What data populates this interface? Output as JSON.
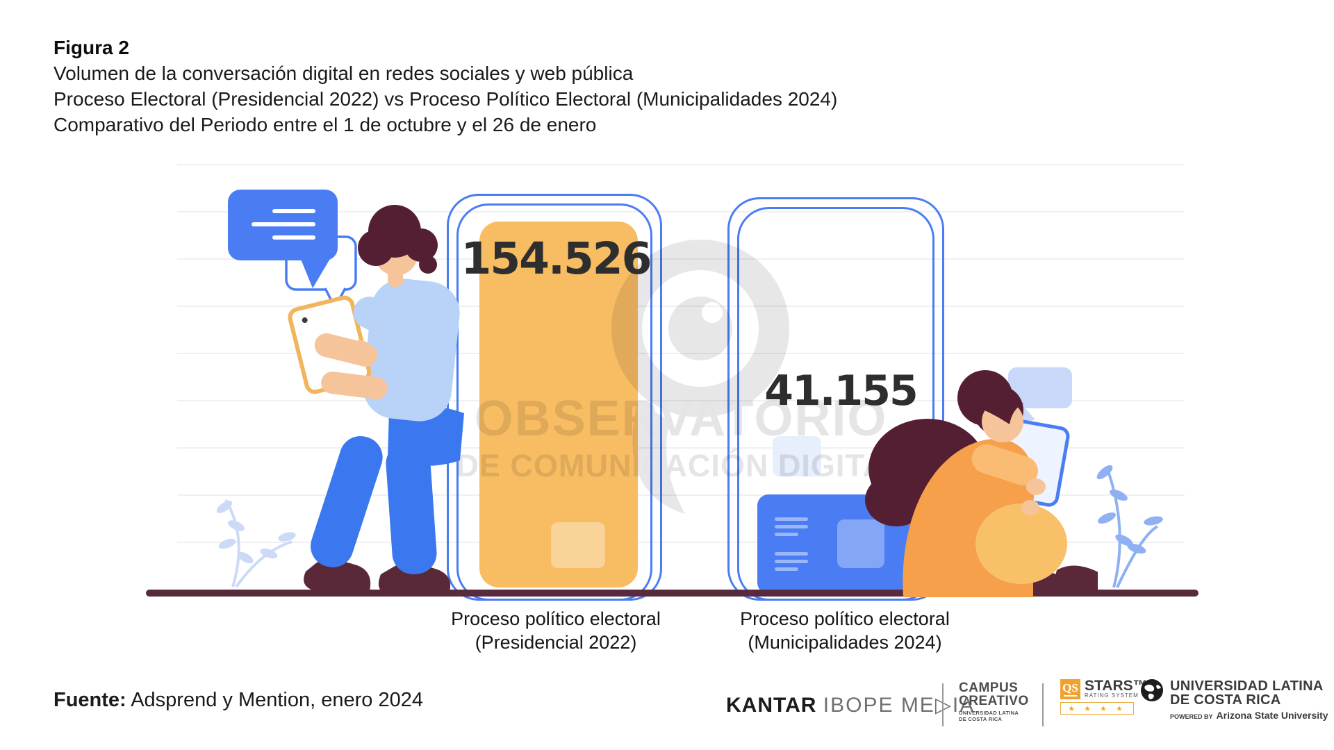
{
  "header": {
    "figure_label": "Figura 2",
    "line1": "Volumen de la conversación digital en redes sociales y web pública",
    "line2": "Proceso Electoral (Presidencial 2022) vs Proceso Político Electoral (Municipalidades 2024)",
    "line3": "Comparativo del Periodo entre el 1 de octubre y el 26 de enero"
  },
  "chart_data": {
    "type": "bar",
    "title": "Volumen de la conversación digital en redes sociales y web pública",
    "subtitle": "Proceso Electoral (Presidencial 2022) vs Proceso Político Electoral (Municipalidades 2024)",
    "period": "Comparativo del Periodo entre el 1 de octubre y el 26 de enero",
    "categories": [
      "Proceso político electoral (Presidencial 2022)",
      "Proceso político electoral (Municipalidades 2024)"
    ],
    "values": [
      154526,
      41155
    ],
    "value_labels": [
      "154.526",
      "41.155"
    ],
    "bar_colors": [
      "#f8bc63",
      "#4a7df3"
    ],
    "xlabel": "",
    "ylabel": "",
    "ylim": [
      0,
      160000
    ],
    "grid": "light horizontal gridlines",
    "legend": false
  },
  "bars": [
    {
      "value_label": "154.526",
      "label_line1": "Proceso político electoral",
      "label_line2": "(Presidencial 2022)"
    },
    {
      "value_label": "41.155",
      "label_line1": "Proceso político electoral",
      "label_line2": "(Municipalidades 2024)"
    }
  ],
  "watermark": {
    "line1": "OBSERVATORIO",
    "line2": "DE COMUNICACIÓN DIGITAL"
  },
  "footer": {
    "source_label": "Fuente:",
    "source_rest": "Adsprend y Mention, enero 2024"
  },
  "logos": {
    "kantar": {
      "brand": "KANTAR",
      "suffix": "IBOPE ME▷IA"
    },
    "campus": {
      "line1": "CAMPUS",
      "line2": "CREATIVO",
      "line3": "UNIVERSIDAD LATINA",
      "line4": "DE COSTA RICA"
    },
    "qs": {
      "box": "QS",
      "stars_word": "STARS™",
      "rating": "RATING SYSTEM",
      "stars": "★ ★ ★ ★"
    },
    "universidad": {
      "line1": "UNIVERSIDAD LATINA",
      "line2": "DE COSTA RICA",
      "powered_by": "POWERED BY",
      "asu": "Arizona State University"
    }
  },
  "colors": {
    "accent_blue": "#4a7df3",
    "bar_orange": "#f8bc63",
    "ground_maroon": "#572b3d",
    "watermark_gray": "#e5e5e5",
    "number_dark": "#2e2e2e",
    "qs_orange": "#f0a231"
  }
}
